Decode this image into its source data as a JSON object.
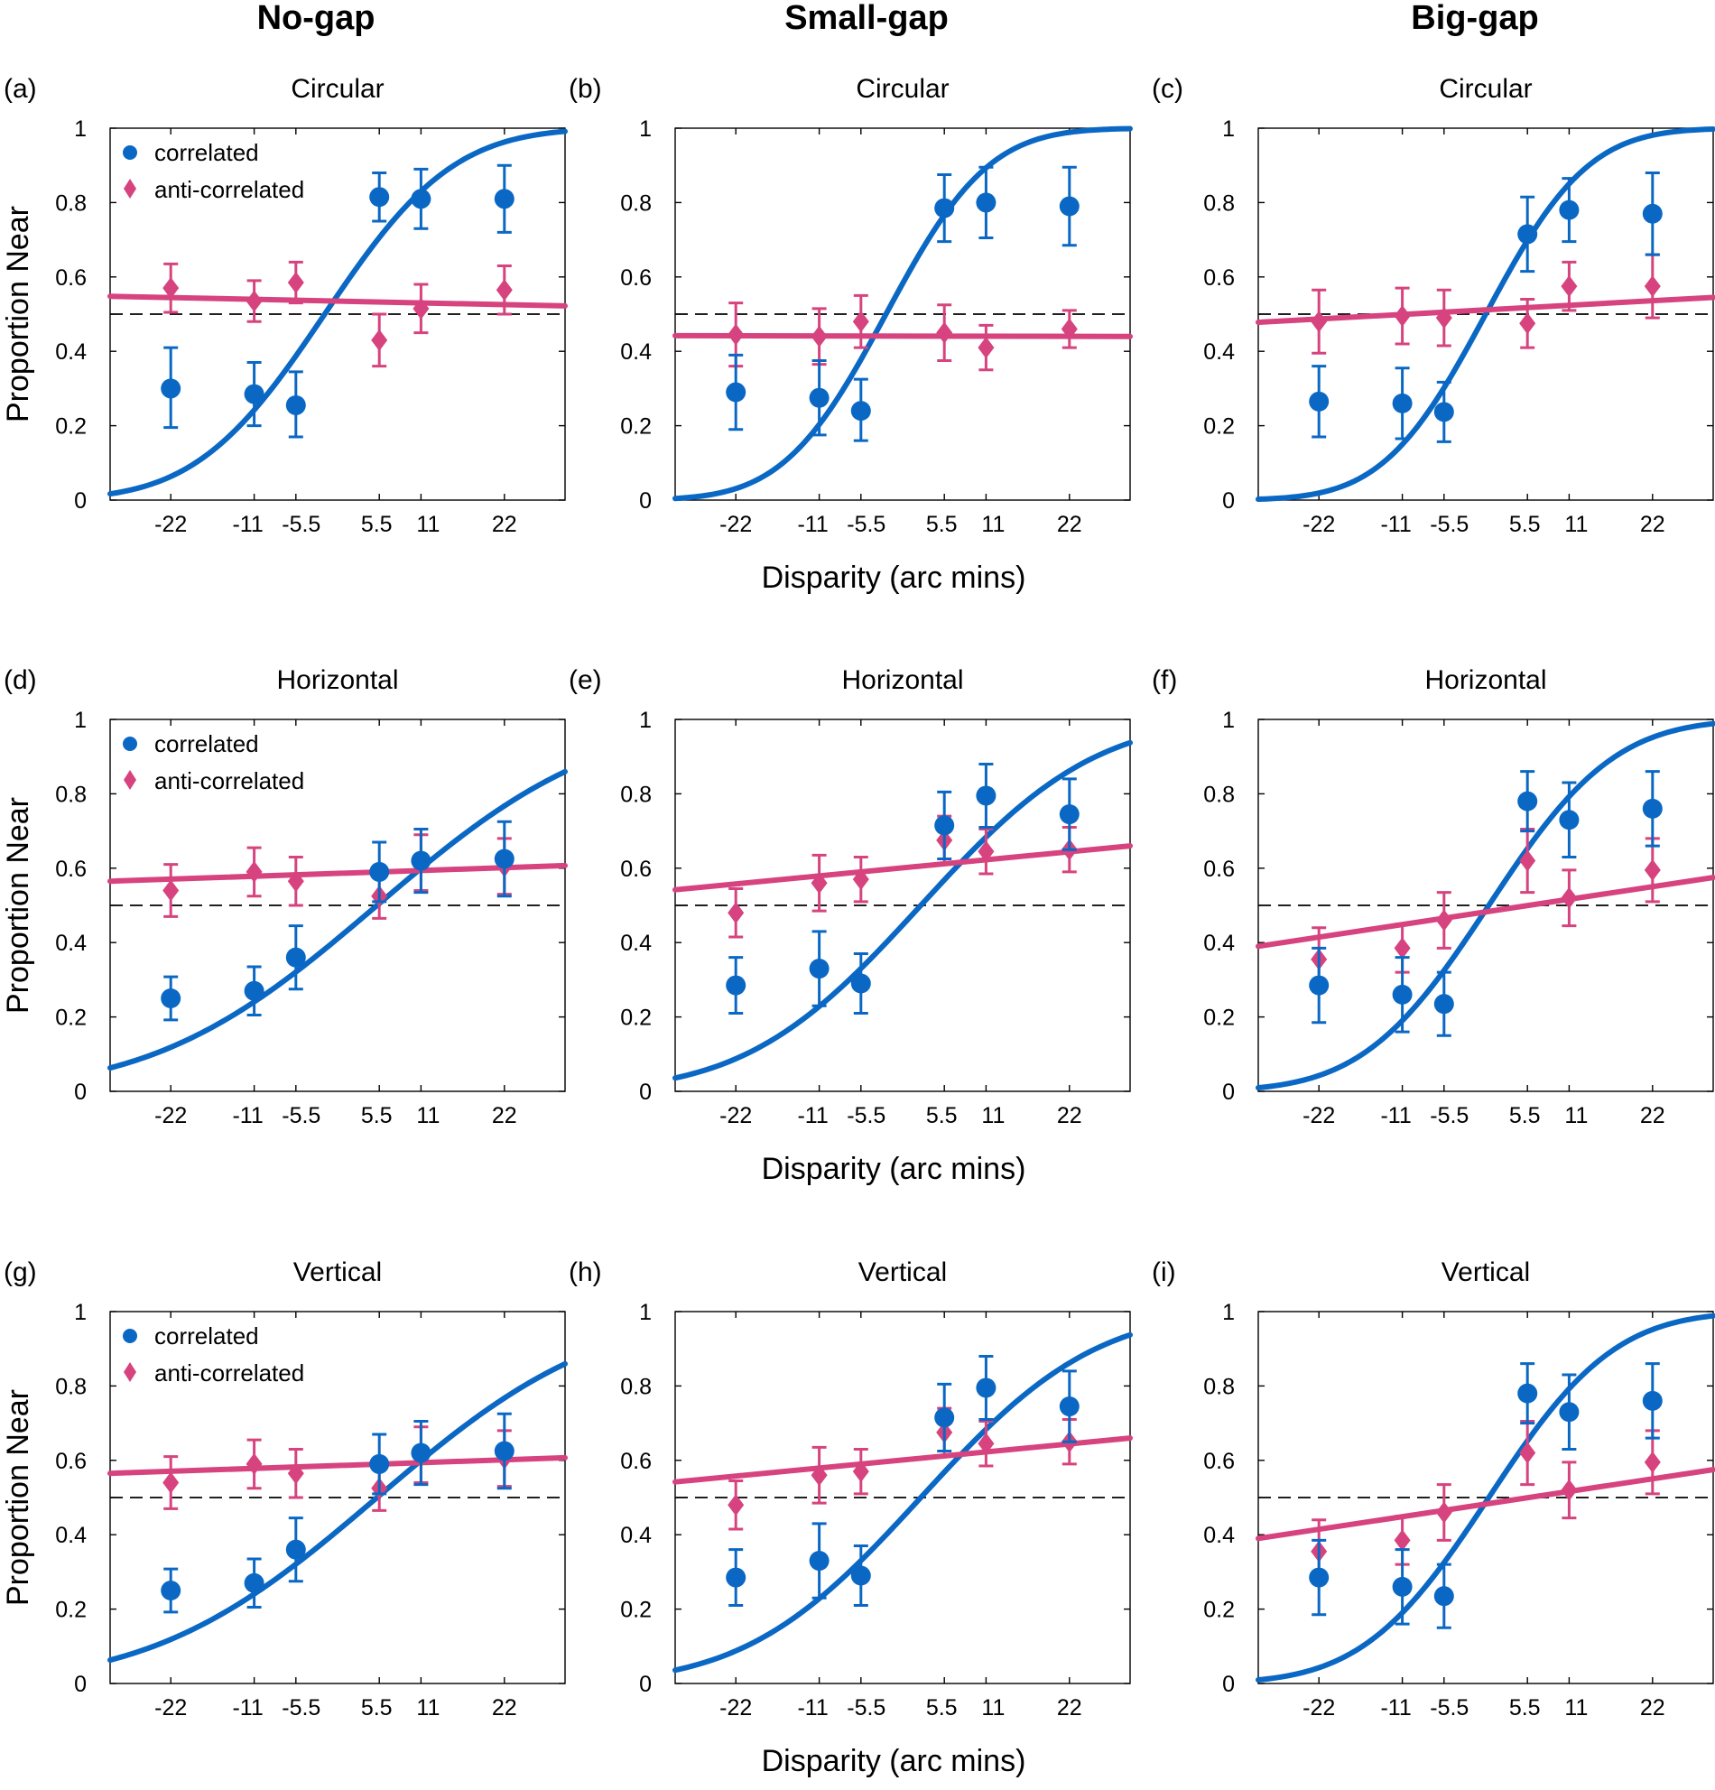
{
  "colors": {
    "correlated": "#0a68c4",
    "anticorrelated": "#d6437e"
  },
  "column_titles": [
    "No-gap",
    "Small-gap",
    "Big-gap"
  ],
  "legend": {
    "correlated": "correlated",
    "anticorrelated": "anti-correlated"
  },
  "y_axis_label": "Proportion Near",
  "x_axis_label": "Disparity (arc mins)",
  "chart_data": [
    {
      "type": "scatter",
      "panel": "(a)",
      "title": "Circular",
      "xlabel": "Disparity (arc mins)",
      "ylabel": "Proportion Near",
      "x_ticks": [
        -22,
        -11,
        -5.5,
        5.5,
        11,
        22
      ],
      "x_tick_labels": [
        "-22",
        "-11",
        "-5.5",
        "5.5",
        "11",
        "22"
      ],
      "y_ticks": [
        0,
        0.2,
        0.4,
        0.6,
        0.8,
        1
      ],
      "y_tick_labels": [
        "0",
        "0.2",
        "0.4",
        "0.6",
        "0.8",
        "1"
      ],
      "xlim": [
        -30,
        30
      ],
      "ylim": [
        0,
        1
      ],
      "chance_level": 0.5,
      "series": [
        {
          "name": "correlated",
          "x": [
            -22,
            -11,
            -5.5,
            5.5,
            11,
            22
          ],
          "y": [
            0.3,
            0.285,
            0.255,
            0.815,
            0.81,
            0.81
          ],
          "err_lower": [
            0.105,
            0.085,
            0.085,
            0.065,
            0.08,
            0.09
          ],
          "err_upper": [
            0.11,
            0.085,
            0.09,
            0.065,
            0.08,
            0.09
          ],
          "fit": {
            "mu": -1.7,
            "sigma": 13.3
          }
        },
        {
          "name": "anti-correlated",
          "x": [
            -22,
            -11,
            -5.5,
            5.5,
            11,
            22
          ],
          "y": [
            0.57,
            0.535,
            0.585,
            0.43,
            0.515,
            0.565
          ],
          "err_lower": [
            0.065,
            0.055,
            0.055,
            0.07,
            0.065,
            0.065
          ],
          "err_upper": [
            0.065,
            0.055,
            0.055,
            0.07,
            0.065,
            0.065
          ],
          "fit": {
            "line": [
              0.548,
              0.522
            ]
          }
        }
      ]
    },
    {
      "type": "scatter",
      "panel": "(b)",
      "title": "Circular",
      "xlabel": "Disparity (arc mins)",
      "ylabel": "Proportion Near",
      "x_ticks": [
        -22,
        -11,
        -5.5,
        5.5,
        11,
        22
      ],
      "x_tick_labels": [
        "-22",
        "-11",
        "-5.5",
        "5.5",
        "11",
        "22"
      ],
      "y_ticks": [
        0,
        0.2,
        0.4,
        0.6,
        0.8,
        1
      ],
      "y_tick_labels": [
        "0",
        "0.2",
        "0.4",
        "0.6",
        "0.8",
        "1"
      ],
      "xlim": [
        -30,
        30
      ],
      "ylim": [
        0,
        1
      ],
      "chance_level": 0.5,
      "series": [
        {
          "name": "correlated",
          "x": [
            -22,
            -11,
            -5.5,
            5.5,
            11,
            22
          ],
          "y": [
            0.29,
            0.275,
            0.24,
            0.785,
            0.8,
            0.79
          ],
          "err_lower": [
            0.1,
            0.1,
            0.08,
            0.09,
            0.095,
            0.105
          ],
          "err_upper": [
            0.1,
            0.1,
            0.085,
            0.09,
            0.095,
            0.105
          ],
          "fit": {
            "mu": -2.2,
            "sigma": 10.6
          }
        },
        {
          "name": "anti-correlated",
          "x": [
            -22,
            -11,
            -5.5,
            5.5,
            11,
            22
          ],
          "y": [
            0.445,
            0.44,
            0.48,
            0.45,
            0.41,
            0.46
          ],
          "err_lower": [
            0.085,
            0.075,
            0.07,
            0.075,
            0.06,
            0.05
          ],
          "err_upper": [
            0.085,
            0.075,
            0.07,
            0.075,
            0.06,
            0.05
          ],
          "fit": {
            "line": [
              0.442,
              0.44
            ]
          }
        }
      ]
    },
    {
      "type": "scatter",
      "panel": "(c)",
      "title": "Circular",
      "xlabel": "Disparity (arc mins)",
      "ylabel": "Proportion Near",
      "x_ticks": [
        -22,
        -11,
        -5.5,
        5.5,
        11,
        22
      ],
      "x_tick_labels": [
        "-22",
        "-11",
        "-5.5",
        "5.5",
        "11",
        "22"
      ],
      "y_ticks": [
        0,
        0.2,
        0.4,
        0.6,
        0.8,
        1
      ],
      "y_tick_labels": [
        "0",
        "0.2",
        "0.4",
        "0.6",
        "0.8",
        "1"
      ],
      "xlim": [
        -30,
        30
      ],
      "ylim": [
        0,
        1
      ],
      "chance_level": 0.5,
      "series": [
        {
          "name": "correlated",
          "x": [
            -22,
            -11,
            -5.5,
            5.5,
            11,
            22
          ],
          "y": [
            0.265,
            0.26,
            0.237,
            0.715,
            0.78,
            0.77
          ],
          "err_lower": [
            0.095,
            0.095,
            0.08,
            0.1,
            0.085,
            0.11
          ],
          "err_upper": [
            0.095,
            0.095,
            0.08,
            0.1,
            0.085,
            0.11
          ],
          "fit": {
            "mu": 0,
            "sigma": 10.6
          }
        },
        {
          "name": "anti-correlated",
          "x": [
            -22,
            -11,
            -5.5,
            5.5,
            11,
            22
          ],
          "y": [
            0.48,
            0.495,
            0.49,
            0.475,
            0.575,
            0.575
          ],
          "err_lower": [
            0.085,
            0.075,
            0.075,
            0.065,
            0.065,
            0.085
          ],
          "err_upper": [
            0.085,
            0.075,
            0.075,
            0.065,
            0.065,
            0.085
          ],
          "fit": {
            "line": [
              0.478,
              0.545
            ]
          }
        }
      ]
    },
    {
      "type": "scatter",
      "panel": "(d)",
      "title": "Horizontal",
      "xlabel": "Disparity (arc mins)",
      "ylabel": "Proportion Near",
      "x_ticks": [
        -22,
        -11,
        -5.5,
        5.5,
        11,
        22
      ],
      "x_tick_labels": [
        "-22",
        "-11",
        "-5.5",
        "5.5",
        "11",
        "22"
      ],
      "y_ticks": [
        0,
        0.2,
        0.4,
        0.6,
        0.8,
        1
      ],
      "y_tick_labels": [
        "0",
        "0.2",
        "0.4",
        "0.6",
        "0.8",
        "1"
      ],
      "xlim": [
        -30,
        30
      ],
      "ylim": [
        0,
        1
      ],
      "chance_level": 0.5,
      "series": [
        {
          "name": "correlated",
          "x": [
            -22,
            -11,
            -5.5,
            5.5,
            11,
            22
          ],
          "y": [
            0.25,
            0.27,
            0.36,
            0.59,
            0.62,
            0.625
          ],
          "err_lower": [
            0.058,
            0.065,
            0.085,
            0.08,
            0.085,
            0.1
          ],
          "err_upper": [
            0.058,
            0.065,
            0.085,
            0.08,
            0.085,
            0.1
          ],
          "fit": {
            "mu": 5.2,
            "sigma": 23
          }
        },
        {
          "name": "anti-correlated",
          "x": [
            -22,
            -11,
            -5.5,
            5.5,
            11,
            22
          ],
          "y": [
            0.54,
            0.59,
            0.565,
            0.525,
            0.615,
            0.605
          ],
          "err_lower": [
            0.07,
            0.065,
            0.065,
            0.06,
            0.075,
            0.075
          ],
          "err_upper": [
            0.07,
            0.065,
            0.065,
            0.06,
            0.075,
            0.075
          ],
          "fit": {
            "line": [
              0.565,
              0.607
            ]
          }
        }
      ]
    },
    {
      "type": "scatter",
      "panel": "(e)",
      "title": "Horizontal",
      "xlabel": "Disparity (arc mins)",
      "ylabel": "Proportion Near",
      "x_ticks": [
        -22,
        -11,
        -5.5,
        5.5,
        11,
        22
      ],
      "x_tick_labels": [
        "-22",
        "-11",
        "-5.5",
        "5.5",
        "11",
        "22"
      ],
      "y_ticks": [
        0,
        0.2,
        0.4,
        0.6,
        0.8,
        1
      ],
      "y_tick_labels": [
        "0",
        "0.2",
        "0.4",
        "0.6",
        "0.8",
        "1"
      ],
      "xlim": [
        -30,
        30
      ],
      "ylim": [
        0,
        1
      ],
      "chance_level": 0.5,
      "series": [
        {
          "name": "correlated",
          "x": [
            -22,
            -11,
            -5.5,
            5.5,
            11,
            22
          ],
          "y": [
            0.285,
            0.33,
            0.29,
            0.715,
            0.795,
            0.745
          ],
          "err_lower": [
            0.075,
            0.1,
            0.08,
            0.09,
            0.085,
            0.095
          ],
          "err_upper": [
            0.075,
            0.1,
            0.08,
            0.09,
            0.085,
            0.095
          ],
          "fit": {
            "mu": 2.4,
            "sigma": 18
          }
        },
        {
          "name": "anti-correlated",
          "x": [
            -22,
            -11,
            -5.5,
            5.5,
            11,
            22
          ],
          "y": [
            0.48,
            0.56,
            0.57,
            0.675,
            0.645,
            0.65
          ],
          "err_lower": [
            0.065,
            0.075,
            0.06,
            0.065,
            0.06,
            0.06
          ],
          "err_upper": [
            0.065,
            0.075,
            0.06,
            0.065,
            0.06,
            0.06
          ],
          "fit": {
            "line": [
              0.542,
              0.66
            ]
          }
        }
      ]
    },
    {
      "type": "scatter",
      "panel": "(f)",
      "title": "Horizontal",
      "xlabel": "Disparity (arc mins)",
      "ylabel": "Proportion Near",
      "x_ticks": [
        -22,
        -11,
        -5.5,
        5.5,
        11,
        22
      ],
      "x_tick_labels": [
        "-22",
        "-11",
        "-5.5",
        "5.5",
        "11",
        "22"
      ],
      "y_ticks": [
        0,
        0.2,
        0.4,
        0.6,
        0.8,
        1
      ],
      "y_tick_labels": [
        "0",
        "0.2",
        "0.4",
        "0.6",
        "0.8",
        "1"
      ],
      "xlim": [
        -30,
        30
      ],
      "ylim": [
        0,
        1
      ],
      "chance_level": 0.5,
      "series": [
        {
          "name": "correlated",
          "x": [
            -22,
            -11,
            -5.5,
            5.5,
            11,
            22
          ],
          "y": [
            0.285,
            0.26,
            0.235,
            0.78,
            0.73,
            0.76
          ],
          "err_lower": [
            0.1,
            0.1,
            0.085,
            0.08,
            0.1,
            0.1
          ],
          "err_upper": [
            0.1,
            0.1,
            0.085,
            0.08,
            0.1,
            0.1
          ],
          "fit": {
            "mu": 0.4,
            "sigma": 13
          }
        },
        {
          "name": "anti-correlated",
          "x": [
            -22,
            -11,
            -5.5,
            5.5,
            11,
            22
          ],
          "y": [
            0.355,
            0.385,
            0.46,
            0.62,
            0.52,
            0.595
          ],
          "err_lower": [
            0.085,
            0.065,
            0.075,
            0.085,
            0.075,
            0.085
          ],
          "err_upper": [
            0.085,
            0.065,
            0.075,
            0.085,
            0.075,
            0.085
          ],
          "fit": {
            "line": [
              0.39,
              0.575
            ]
          }
        }
      ]
    },
    {
      "type": "scatter",
      "panel": "(g)",
      "title": "Vertical",
      "xlabel": "Disparity (arc mins)",
      "ylabel": "Proportion Near",
      "x_ticks": [
        -22,
        -11,
        -5.5,
        5.5,
        11,
        22
      ],
      "x_tick_labels": [
        "-22",
        "-11",
        "-5.5",
        "5.5",
        "11",
        "22"
      ],
      "y_ticks": [
        0,
        0.2,
        0.4,
        0.6,
        0.8,
        1
      ],
      "y_tick_labels": [
        "0",
        "0.2",
        "0.4",
        "0.6",
        "0.8",
        "1"
      ],
      "xlim": [
        -30,
        30
      ],
      "ylim": [
        0,
        1
      ],
      "chance_level": 0.5,
      "series": [
        {
          "name": "correlated",
          "x": [
            -22,
            -11,
            -5.5,
            5.5,
            11,
            22
          ],
          "y": [
            0.25,
            0.27,
            0.36,
            0.59,
            0.62,
            0.625
          ],
          "err_lower": [
            0.058,
            0.065,
            0.085,
            0.08,
            0.085,
            0.1
          ],
          "err_upper": [
            0.058,
            0.065,
            0.085,
            0.08,
            0.085,
            0.1
          ],
          "fit": {
            "mu": 5.2,
            "sigma": 23
          }
        },
        {
          "name": "anti-correlated",
          "x": [
            -22,
            -11,
            -5.5,
            5.5,
            11,
            22
          ],
          "y": [
            0.54,
            0.59,
            0.565,
            0.525,
            0.615,
            0.605
          ],
          "err_lower": [
            0.07,
            0.065,
            0.065,
            0.06,
            0.075,
            0.075
          ],
          "err_upper": [
            0.07,
            0.065,
            0.065,
            0.06,
            0.075,
            0.075
          ],
          "fit": {
            "line": [
              0.565,
              0.607
            ]
          }
        }
      ]
    },
    {
      "type": "scatter",
      "panel": "(h)",
      "title": "Vertical",
      "xlabel": "Disparity (arc mins)",
      "ylabel": "Proportion Near",
      "x_ticks": [
        -22,
        -11,
        -5.5,
        5.5,
        11,
        22
      ],
      "x_tick_labels": [
        "-22",
        "-11",
        "-5.5",
        "5.5",
        "11",
        "22"
      ],
      "y_ticks": [
        0,
        0.2,
        0.4,
        0.6,
        0.8,
        1
      ],
      "y_tick_labels": [
        "0",
        "0.2",
        "0.4",
        "0.6",
        "0.8",
        "1"
      ],
      "xlim": [
        -30,
        30
      ],
      "ylim": [
        0,
        1
      ],
      "chance_level": 0.5,
      "series": [
        {
          "name": "correlated",
          "x": [
            -22,
            -11,
            -5.5,
            5.5,
            11,
            22
          ],
          "y": [
            0.285,
            0.33,
            0.29,
            0.715,
            0.795,
            0.745
          ],
          "err_lower": [
            0.075,
            0.1,
            0.08,
            0.09,
            0.085,
            0.095
          ],
          "err_upper": [
            0.075,
            0.1,
            0.08,
            0.09,
            0.085,
            0.095
          ],
          "fit": {
            "mu": 2.4,
            "sigma": 18
          }
        },
        {
          "name": "anti-correlated",
          "x": [
            -22,
            -11,
            -5.5,
            5.5,
            11,
            22
          ],
          "y": [
            0.48,
            0.56,
            0.57,
            0.675,
            0.645,
            0.65
          ],
          "err_lower": [
            0.065,
            0.075,
            0.06,
            0.065,
            0.06,
            0.06
          ],
          "err_upper": [
            0.065,
            0.075,
            0.06,
            0.065,
            0.06,
            0.06
          ],
          "fit": {
            "line": [
              0.542,
              0.66
            ]
          }
        }
      ]
    },
    {
      "type": "scatter",
      "panel": "(i)",
      "title": "Vertical",
      "xlabel": "Disparity (arc mins)",
      "ylabel": "Proportion Near",
      "x_ticks": [
        -22,
        -11,
        -5.5,
        5.5,
        11,
        22
      ],
      "x_tick_labels": [
        "-22",
        "-11",
        "-5.5",
        "5.5",
        "11",
        "22"
      ],
      "y_ticks": [
        0,
        0.2,
        0.4,
        0.6,
        0.8,
        1
      ],
      "y_tick_labels": [
        "0",
        "0.2",
        "0.4",
        "0.6",
        "0.8",
        "1"
      ],
      "xlim": [
        -30,
        30
      ],
      "ylim": [
        0,
        1
      ],
      "chance_level": 0.5,
      "series": [
        {
          "name": "correlated",
          "x": [
            -22,
            -11,
            -5.5,
            5.5,
            11,
            22
          ],
          "y": [
            0.285,
            0.26,
            0.235,
            0.78,
            0.73,
            0.76
          ],
          "err_lower": [
            0.1,
            0.1,
            0.085,
            0.08,
            0.1,
            0.1
          ],
          "err_upper": [
            0.1,
            0.1,
            0.085,
            0.08,
            0.1,
            0.1
          ],
          "fit": {
            "mu": 0.4,
            "sigma": 13
          }
        },
        {
          "name": "anti-correlated",
          "x": [
            -22,
            -11,
            -5.5,
            5.5,
            11,
            22
          ],
          "y": [
            0.355,
            0.385,
            0.46,
            0.62,
            0.52,
            0.595
          ],
          "err_lower": [
            0.085,
            0.065,
            0.075,
            0.085,
            0.075,
            0.085
          ],
          "err_upper": [
            0.085,
            0.065,
            0.075,
            0.085,
            0.075,
            0.085
          ],
          "fit": {
            "line": [
              0.39,
              0.575
            ]
          }
        }
      ]
    }
  ]
}
